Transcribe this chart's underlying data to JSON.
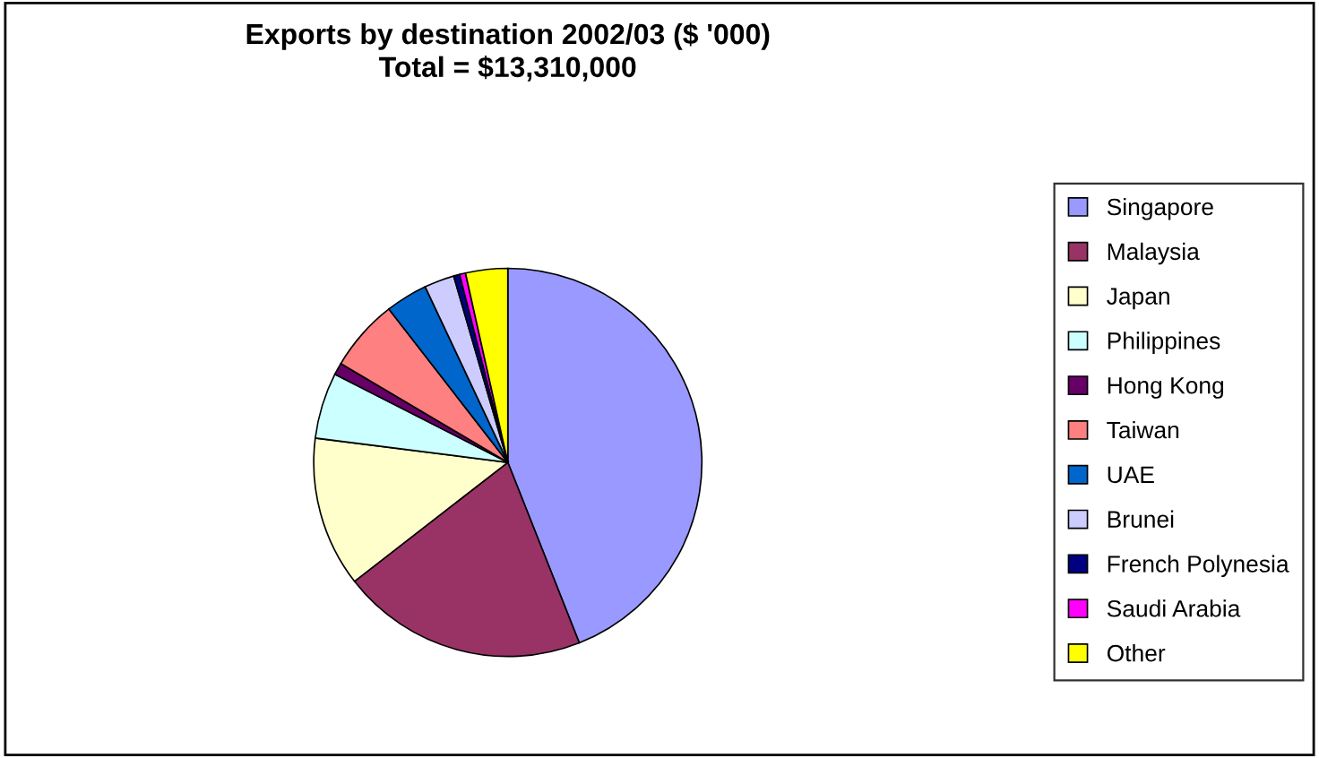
{
  "chart_data": {
    "type": "pie",
    "title": "Exports by destination 2002/03 ($ '000)\nTotal = $13,310,000",
    "categories": [
      "Singapore",
      "Malaysia",
      "Japan",
      "Philippines",
      "Hong Kong",
      "Taiwan",
      "UAE",
      "Brunei",
      "French Polynesia",
      "Saudi Arabia",
      "Other"
    ],
    "values": [
      44,
      20.5,
      12.5,
      5.5,
      1,
      6,
      3.5,
      2.5,
      0.5,
      0.5,
      3.5
    ],
    "colors": [
      "#9999ff",
      "#993366",
      "#ffffcc",
      "#ccffff",
      "#660066",
      "#ff8080",
      "#0066cc",
      "#ccccff",
      "#000080",
      "#ff00ff",
      "#ffff00"
    ],
    "legend": "right"
  }
}
